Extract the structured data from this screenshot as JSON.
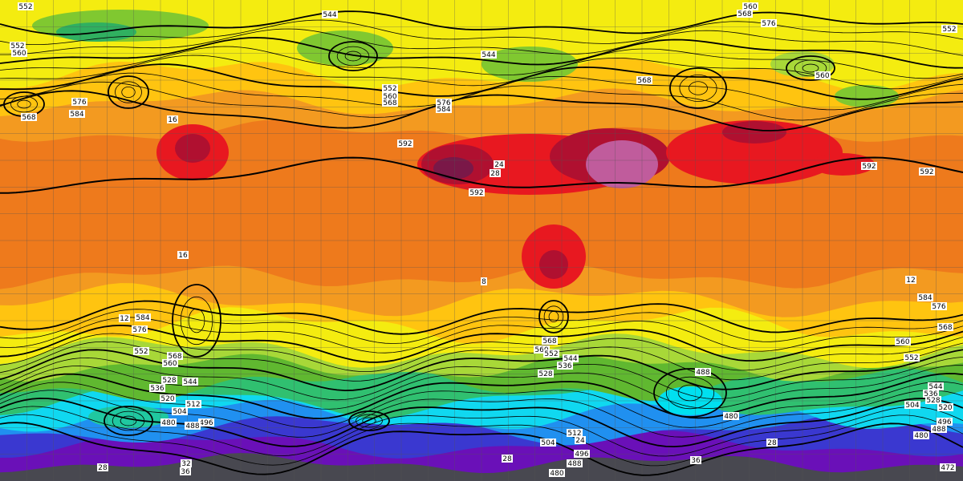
{
  "contour_labels": [
    "552",
    "544",
    "560",
    "568",
    "576",
    "552",
    "552",
    "560",
    "544",
    "560",
    "568",
    "552",
    "560",
    "568",
    "576",
    "584",
    "576",
    "584",
    "568",
    "592",
    "592",
    "592",
    "592",
    "584",
    "576",
    "552",
    "568",
    "560",
    "544",
    "536",
    "528",
    "520",
    "512",
    "504",
    "496",
    "488",
    "480",
    "568",
    "560",
    "552",
    "544",
    "536",
    "528",
    "488",
    "480",
    "512",
    "504",
    "496",
    "488",
    "480",
    "560",
    "552",
    "544",
    "536",
    "528",
    "520",
    "504",
    "496",
    "488",
    "480",
    "472",
    "584",
    "576",
    "568"
  ],
  "temperature_labels": [
    "16",
    "24",
    "28",
    "16",
    "12",
    "8",
    "12",
    "28",
    "28",
    "32",
    "36",
    "36",
    "28",
    "24"
  ]
}
